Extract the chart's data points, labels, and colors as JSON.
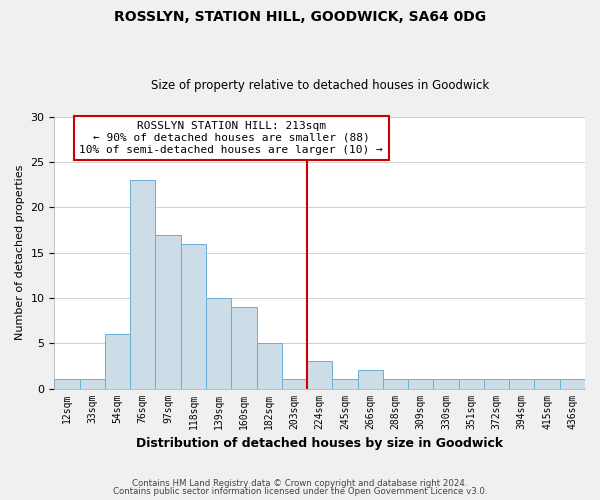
{
  "title": "ROSSLYN, STATION HILL, GOODWICK, SA64 0DG",
  "subtitle": "Size of property relative to detached houses in Goodwick",
  "xlabel": "Distribution of detached houses by size in Goodwick",
  "ylabel": "Number of detached properties",
  "bin_labels": [
    "12sqm",
    "33sqm",
    "54sqm",
    "76sqm",
    "97sqm",
    "118sqm",
    "139sqm",
    "160sqm",
    "182sqm",
    "203sqm",
    "224sqm",
    "245sqm",
    "266sqm",
    "288sqm",
    "309sqm",
    "330sqm",
    "351sqm",
    "372sqm",
    "394sqm",
    "415sqm",
    "436sqm"
  ],
  "bar_heights": [
    1,
    1,
    6,
    23,
    17,
    16,
    10,
    9,
    5,
    1,
    3,
    1,
    2,
    1,
    1,
    1,
    1,
    1,
    1,
    1,
    1
  ],
  "bar_color": "#ccdde8",
  "bar_edge_color": "#6aafd4",
  "annotation_title": "ROSSLYN STATION HILL: 213sqm",
  "annotation_line1": "← 90% of detached houses are smaller (88)",
  "annotation_line2": "10% of semi-detached houses are larger (10) →",
  "property_line_x": 9.5,
  "ylim": [
    0,
    30
  ],
  "yticks": [
    0,
    5,
    10,
    15,
    20,
    25,
    30
  ],
  "footnote1": "Contains HM Land Registry data © Crown copyright and database right 2024.",
  "footnote2": "Contains public sector information licensed under the Open Government Licence v3.0.",
  "background_color": "#f0f0f0",
  "plot_background_color": "#ffffff"
}
